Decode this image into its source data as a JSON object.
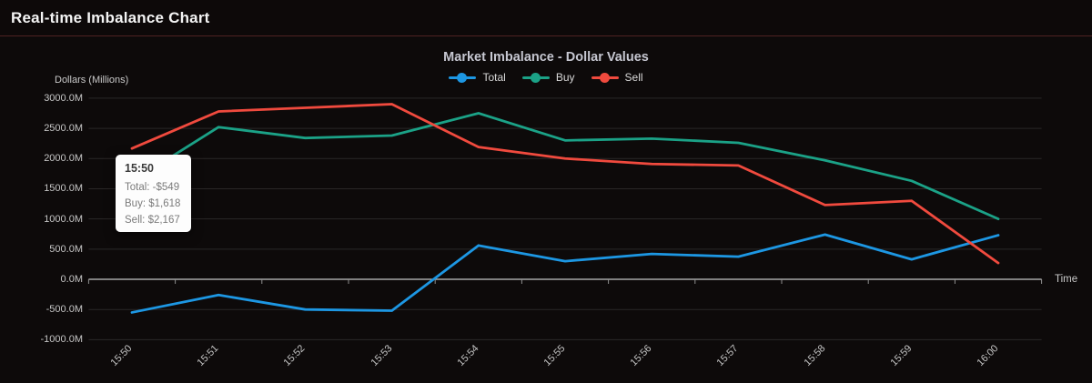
{
  "header": {
    "title": "Real-time Imbalance Chart"
  },
  "chart": {
    "title": "Market Imbalance - Dollar Values",
    "y_axis_title": "Dollars (Millions)",
    "x_axis_title": "Time",
    "tooltip": {
      "title": "15:50",
      "rows": [
        "Total: -$549",
        "Buy: $1,618",
        "Sell: $2,167"
      ]
    }
  },
  "chart_data": {
    "type": "line",
    "title": "Market Imbalance - Dollar Values",
    "xlabel": "Time",
    "ylabel": "Dollars (Millions)",
    "x": [
      "15:50",
      "15:51",
      "15:52",
      "15:53",
      "15:54",
      "15:55",
      "15:56",
      "15:57",
      "15:58",
      "15:59",
      "16:00"
    ],
    "series": [
      {
        "name": "Total",
        "color": "#1d97e3",
        "values": [
          -549,
          -260,
          -500,
          -520,
          560,
          300,
          420,
          375,
          740,
          330,
          730
        ]
      },
      {
        "name": "Buy",
        "color": "#1ba287",
        "values": [
          1618,
          2520,
          2340,
          2380,
          2750,
          2300,
          2330,
          2260,
          1970,
          1630,
          1000
        ]
      },
      {
        "name": "Sell",
        "color": "#f04a3e",
        "values": [
          2167,
          2780,
          2840,
          2900,
          2190,
          2000,
          1910,
          1885,
          1230,
          1300,
          270
        ]
      }
    ],
    "ylim": [
      -1000,
      3000
    ],
    "y_ticks": [
      3000,
      2500,
      2000,
      1500,
      1000,
      500,
      0,
      -500,
      -1000
    ],
    "y_tick_labels": [
      "3000.0M",
      "2500.0M",
      "2000.0M",
      "1500.0M",
      "1000.0M",
      "500.0M",
      "0.0M",
      "-500.0M",
      "-1000.0M"
    ],
    "grid": true,
    "legend_position": "top",
    "background": "#0d0a0a",
    "zero_axis_color": "#c6c6c6",
    "grid_color": "rgba(255,255,255,0.12)"
  }
}
